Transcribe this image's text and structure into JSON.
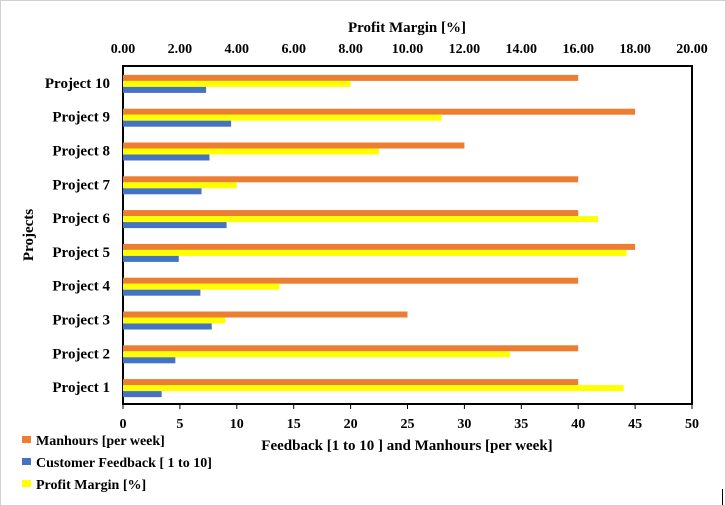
{
  "chart_data": {
    "type": "bar",
    "orientation": "horizontal",
    "title": "",
    "categories": [
      "Project 1",
      "Project 2",
      "Project 3",
      "Project 4",
      "Project 5",
      "Project 6",
      "Project 7",
      "Project 8",
      "Project 9",
      "Project 10"
    ],
    "series": [
      {
        "name": "Manhours [per week]",
        "axis": "bottom",
        "color": "#ED7D31",
        "values": [
          40,
          40,
          25,
          40,
          45,
          40,
          40,
          30,
          45,
          40
        ]
      },
      {
        "name": "Customer Feedback [ 1 to 10]",
        "axis": "bottom",
        "color": "#4472C4",
        "values": [
          3.4,
          4.6,
          7.8,
          6.8,
          4.9,
          9.1,
          6.9,
          7.6,
          9.5,
          7.3
        ]
      },
      {
        "name": "Profit Margin [%]",
        "axis": "top",
        "color": "#FFFF00",
        "values": [
          17.6,
          13.6,
          3.6,
          5.5,
          17.7,
          16.7,
          4.0,
          9.0,
          11.2,
          8.0
        ]
      }
    ],
    "x_bottom": {
      "label": "Feedback [1 to 10 ] and Manhours [per week]",
      "range": [
        0,
        50
      ],
      "ticks": [
        "0",
        "5",
        "10",
        "15",
        "20",
        "25",
        "30",
        "35",
        "40",
        "45",
        "50"
      ]
    },
    "x_top": {
      "label": "Profit Margin [%]",
      "range": [
        0,
        20
      ],
      "ticks": [
        "0.00",
        "2.00",
        "4.00",
        "6.00",
        "8.00",
        "10.00",
        "12.00",
        "14.00",
        "16.00",
        "18.00",
        "20.00"
      ]
    },
    "ylabel": "Projects",
    "grid": false,
    "legend_position": "bottom-left"
  }
}
